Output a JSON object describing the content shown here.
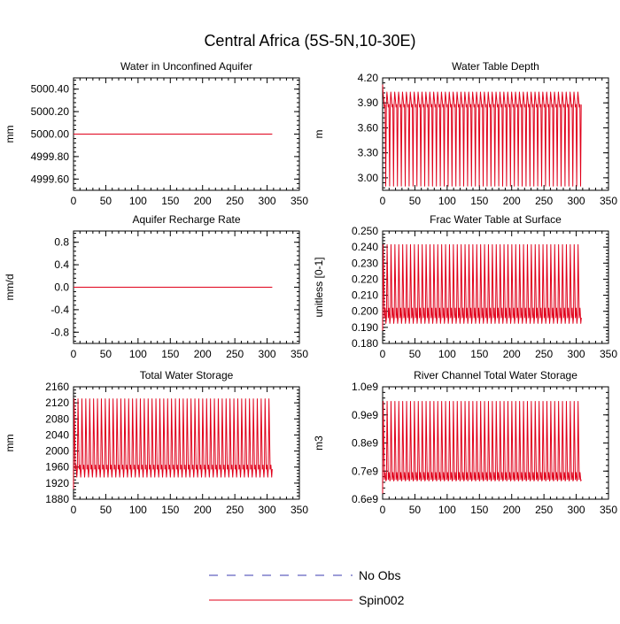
{
  "title": "Central Africa (5S-5N,10-30E)",
  "colors": {
    "obs": "#3b3bb0",
    "spin": "#e0001a",
    "axis": "#000000"
  },
  "legend": [
    {
      "name": "No Obs",
      "style": "dashed",
      "color": "#3b3bb0"
    },
    {
      "name": "Spin002",
      "style": "solid",
      "color": "#e0001a"
    }
  ],
  "chart_data": [
    {
      "type": "line",
      "title": "Water in Unconfined Aquifer",
      "ylabel": "mm",
      "xlim": [
        0,
        350
      ],
      "ylim": [
        4999.5,
        5000.5
      ],
      "xticks": [
        "0",
        "50",
        "100",
        "150",
        "200",
        "250",
        "300",
        "350"
      ],
      "yticks": [
        {
          "v": 4999.6,
          "label": "4999.60"
        },
        {
          "v": 4999.8,
          "label": "4999.80"
        },
        {
          "v": 5000.0,
          "label": "5000.00"
        },
        {
          "v": 5000.2,
          "label": "5000.20"
        },
        {
          "v": 5000.4,
          "label": "5000.40"
        }
      ],
      "series": [
        {
          "pattern": "flat",
          "start": 0,
          "end": 308,
          "base": 5000.0
        }
      ]
    },
    {
      "type": "line",
      "title": "Water Table Depth",
      "ylabel": "m",
      "xlim": [
        0,
        350
      ],
      "ylim": [
        2.85,
        4.2
      ],
      "xticks": [
        "0",
        "50",
        "100",
        "150",
        "200",
        "250",
        "300",
        "350"
      ],
      "yticks": [
        {
          "v": 3.0,
          "label": "3.00"
        },
        {
          "v": 3.3,
          "label": "3.30"
        },
        {
          "v": 3.6,
          "label": "3.60"
        },
        {
          "v": 3.9,
          "label": "3.90"
        },
        {
          "v": 4.2,
          "label": "4.20"
        }
      ],
      "series": [
        {
          "pattern": "annual",
          "start": 0,
          "end": 308,
          "cycles": 51,
          "initial": 4.12,
          "base": 3.88,
          "peak": 4.03,
          "trough": 2.9,
          "mid": 3.85
        }
      ]
    },
    {
      "type": "line",
      "title": "Aquifer Recharge Rate",
      "ylabel": "mm/d",
      "xlim": [
        0,
        350
      ],
      "ylim": [
        -1.0,
        1.0
      ],
      "xticks": [
        "0",
        "50",
        "100",
        "150",
        "200",
        "250",
        "300",
        "350"
      ],
      "yticks": [
        {
          "v": -0.8,
          "label": "-0.8"
        },
        {
          "v": -0.4,
          "label": "-0.4"
        },
        {
          "v": 0.0,
          "label": "0.0"
        },
        {
          "v": 0.4,
          "label": "0.4"
        },
        {
          "v": 0.8,
          "label": "0.8"
        }
      ],
      "series": [
        {
          "pattern": "flat",
          "start": 0,
          "end": 308,
          "base": 0.0
        }
      ]
    },
    {
      "type": "line",
      "title": "Frac Water Table at Surface",
      "ylabel": "unitless [0-1]",
      "xlim": [
        0,
        350
      ],
      "ylim": [
        0.18,
        0.25
      ],
      "xticks": [
        "0",
        "50",
        "100",
        "150",
        "200",
        "250",
        "300",
        "350"
      ],
      "yticks": [
        {
          "v": 0.18,
          "label": "0.180"
        },
        {
          "v": 0.19,
          "label": "0.190"
        },
        {
          "v": 0.2,
          "label": "0.200"
        },
        {
          "v": 0.21,
          "label": "0.210"
        },
        {
          "v": 0.22,
          "label": "0.220"
        },
        {
          "v": 0.23,
          "label": "0.230"
        },
        {
          "v": 0.24,
          "label": "0.240"
        },
        {
          "v": 0.25,
          "label": "0.250"
        }
      ],
      "series": [
        {
          "pattern": "annual",
          "start": 0,
          "end": 308,
          "cycles": 51,
          "initial": 0.188,
          "base": 0.196,
          "peak": 0.2415,
          "trough": 0.1925,
          "mid": 0.202
        }
      ]
    },
    {
      "type": "line",
      "title": "Total Water Storage",
      "ylabel": "mm",
      "xlim": [
        0,
        350
      ],
      "ylim": [
        1880,
        2160
      ],
      "xticks": [
        "0",
        "50",
        "100",
        "150",
        "200",
        "250",
        "300",
        "350"
      ],
      "yticks": [
        {
          "v": 1880,
          "label": "1880"
        },
        {
          "v": 1920,
          "label": "1920"
        },
        {
          "v": 1960,
          "label": "1960"
        },
        {
          "v": 2000,
          "label": "2000"
        },
        {
          "v": 2040,
          "label": "2040"
        },
        {
          "v": 2080,
          "label": "2080"
        },
        {
          "v": 2120,
          "label": "2120"
        },
        {
          "v": 2160,
          "label": "2160"
        }
      ],
      "series": [
        {
          "pattern": "annual",
          "start": 0,
          "end": 308,
          "cycles": 51,
          "initial": 1905,
          "base": 1955,
          "peak": 2130,
          "trough": 1935,
          "mid": 1965
        }
      ]
    },
    {
      "type": "line",
      "title": "River Channel Total Water Storage",
      "ylabel": "m3",
      "xlim": [
        0,
        350
      ],
      "ylim": [
        0.6,
        1.0
      ],
      "xticks": [
        "0",
        "50",
        "100",
        "150",
        "200",
        "250",
        "300",
        "350"
      ],
      "yticks": [
        {
          "v": 0.6,
          "label": "0.6e9"
        },
        {
          "v": 0.7,
          "label": "0.7e9"
        },
        {
          "v": 0.8,
          "label": "0.8e9"
        },
        {
          "v": 0.9,
          "label": "0.9e9"
        },
        {
          "v": 1.0,
          "label": "1.0e9"
        }
      ],
      "series": [
        {
          "pattern": "annual",
          "start": 0,
          "end": 308,
          "cycles": 51,
          "initial": 0.62,
          "base": 0.67,
          "peak": 0.948,
          "trough": 0.665,
          "mid": 0.695
        }
      ]
    }
  ]
}
